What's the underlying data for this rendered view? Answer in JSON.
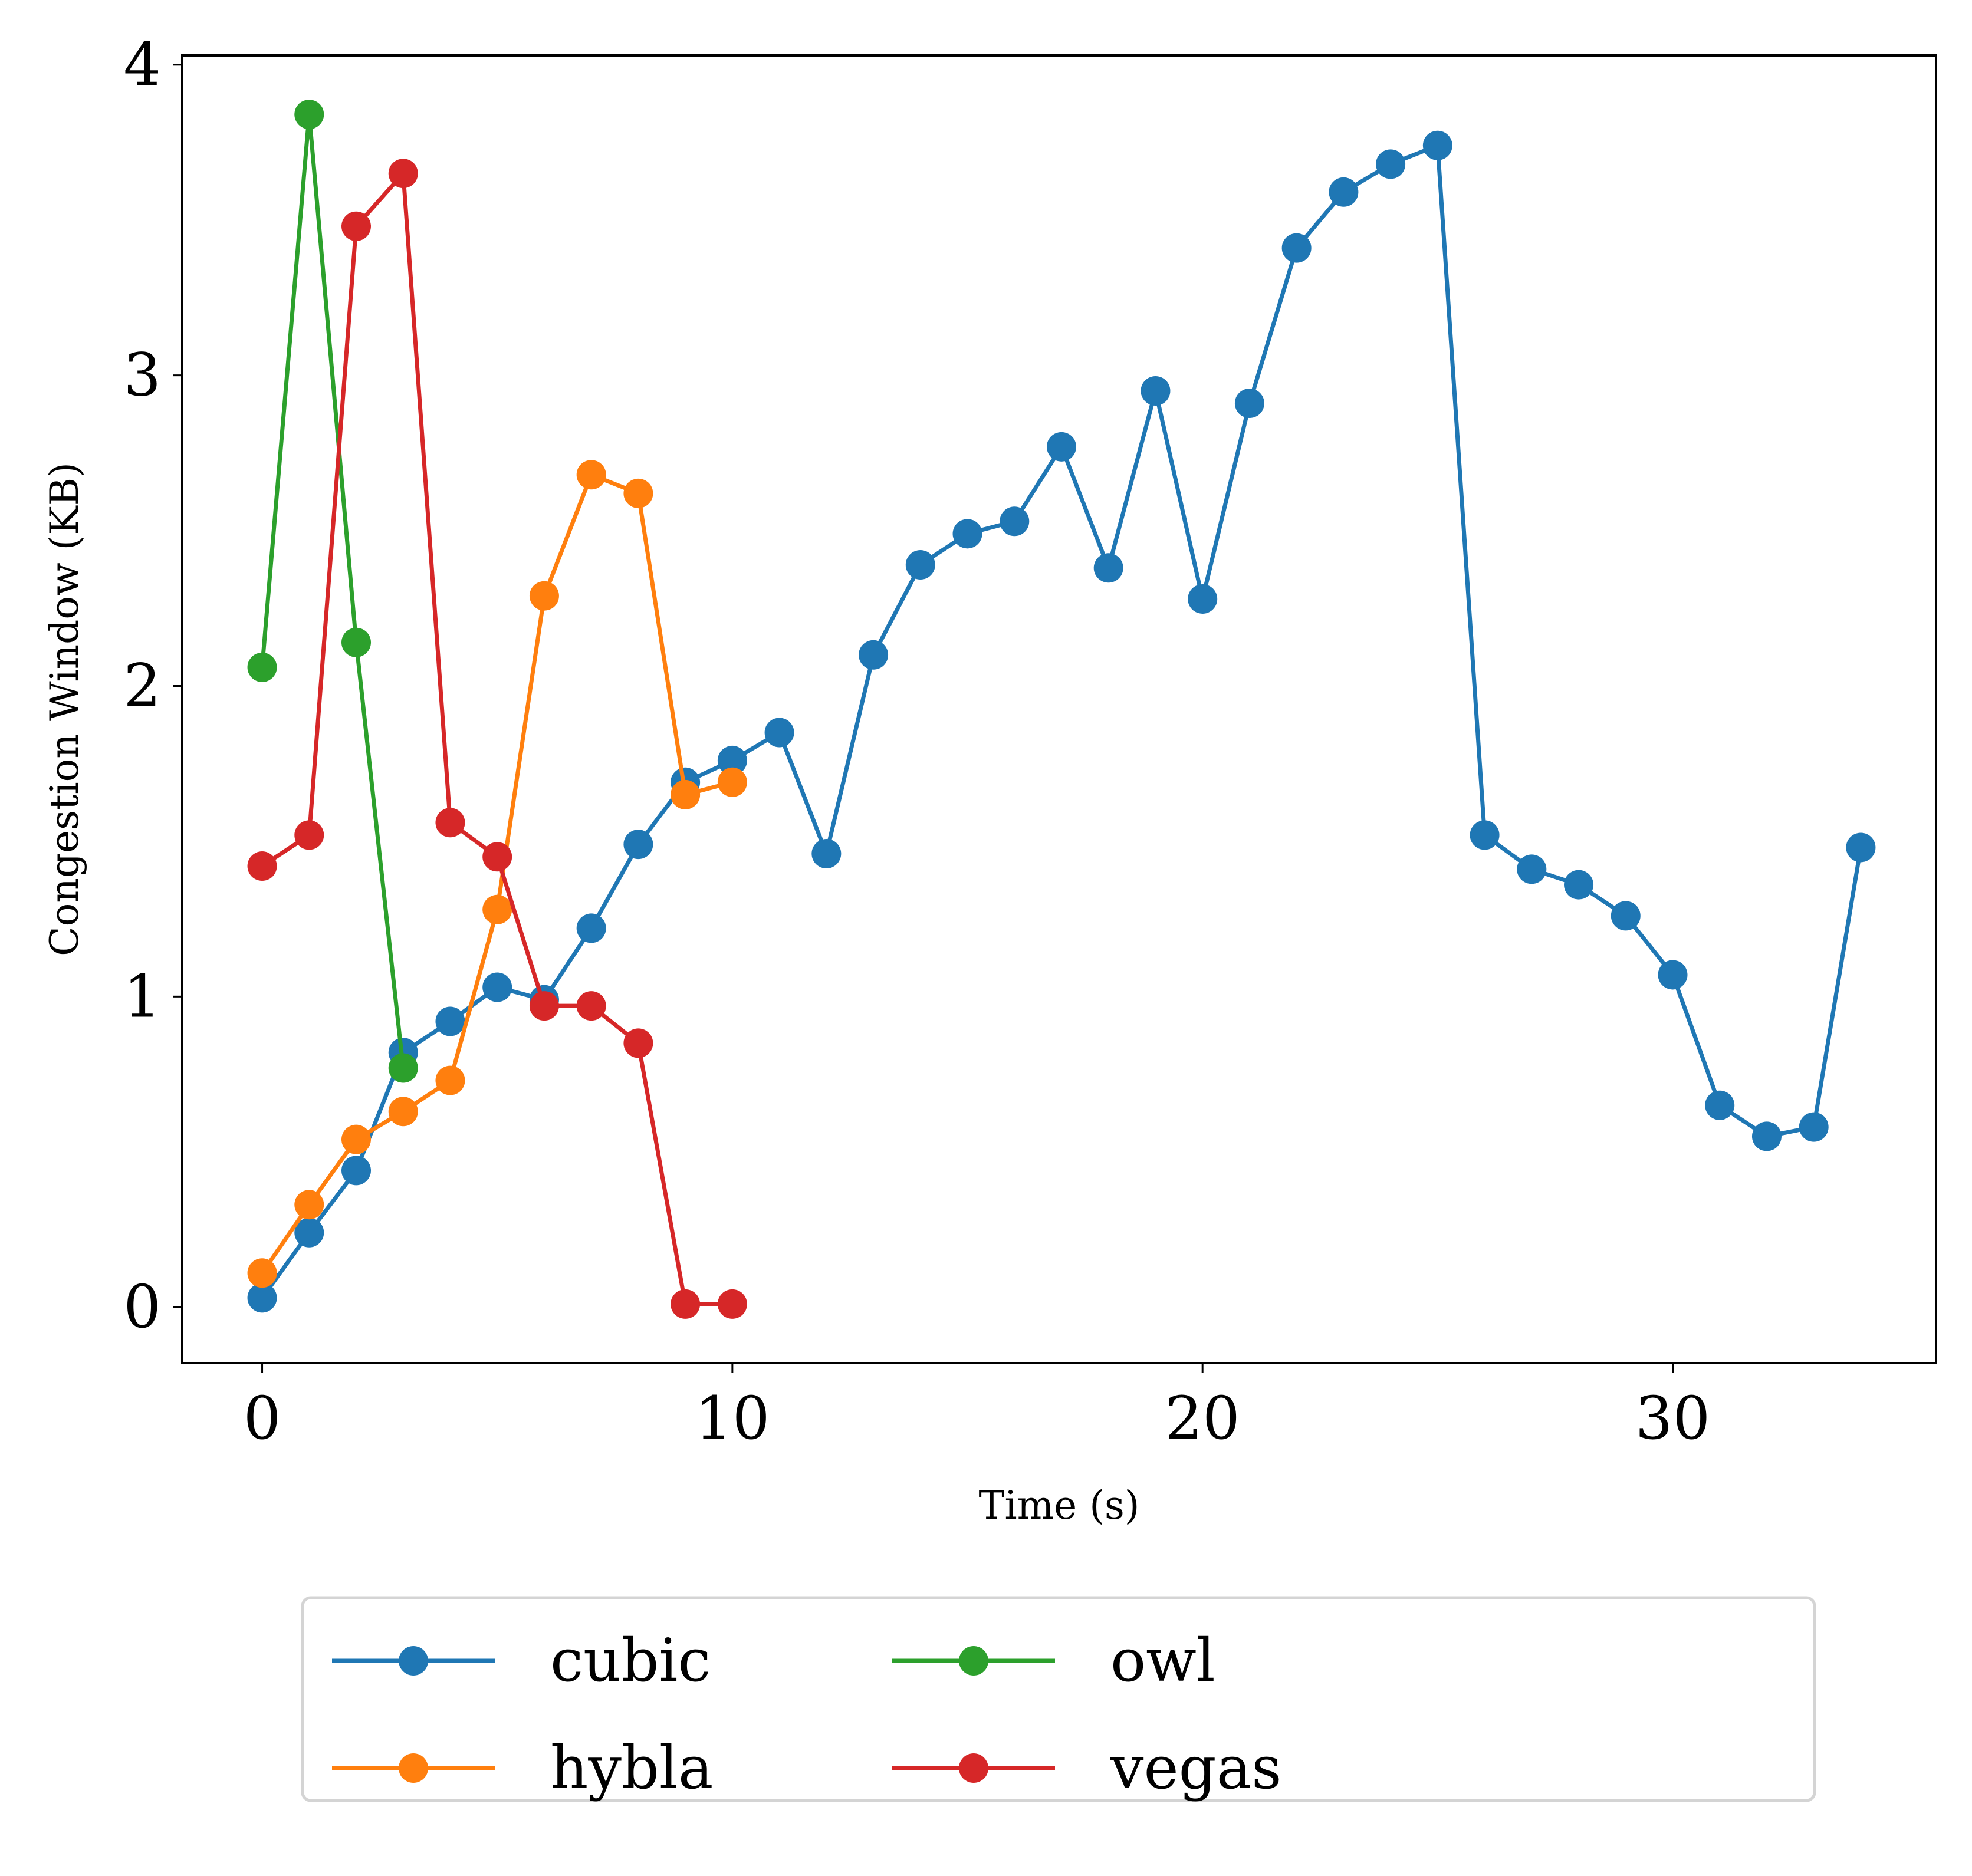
{
  "chart_data": {
    "type": "line",
    "xlabel": "Time (s)",
    "ylabel": "Congestion Window (KB)",
    "xlim": [
      -1.7,
      35.6
    ],
    "ylim": [
      -0.18,
      4.03
    ],
    "xticks": [
      0,
      10,
      20,
      30
    ],
    "yticks": [
      0,
      1,
      2,
      3,
      4
    ],
    "grid": false,
    "legend": {
      "position": "below-center",
      "columns": 3
    },
    "series": [
      {
        "name": "cubic",
        "color": "#1f77b4",
        "marker": "circle",
        "x": [
          0,
          1,
          2,
          3,
          4,
          5,
          6,
          7,
          8,
          9,
          10,
          11,
          12,
          13,
          14,
          15,
          16,
          17,
          18,
          19,
          20,
          21,
          22,
          23,
          24,
          25,
          26,
          27,
          28,
          29,
          30,
          31,
          32,
          33,
          34
        ],
        "y": [
          0.03,
          0.24,
          0.44,
          0.82,
          0.92,
          1.03,
          0.99,
          1.22,
          1.49,
          1.69,
          1.76,
          1.85,
          1.46,
          2.1,
          2.39,
          2.49,
          2.53,
          2.77,
          2.38,
          2.95,
          2.28,
          2.91,
          3.41,
          3.59,
          3.68,
          3.74,
          1.52,
          1.41,
          1.36,
          1.26,
          1.07,
          0.65,
          0.55,
          0.58,
          1.48
        ]
      },
      {
        "name": "hybla",
        "color": "#ff7f0e",
        "marker": "circle",
        "x": [
          0,
          1,
          2,
          3,
          4,
          5,
          6,
          7,
          8,
          9,
          10
        ],
        "y": [
          0.11,
          0.33,
          0.54,
          0.63,
          0.73,
          1.28,
          2.29,
          2.68,
          2.62,
          1.65,
          1.69
        ]
      },
      {
        "name": "owl",
        "color": "#2ca02c",
        "marker": "circle",
        "x": [
          0,
          1,
          2,
          3
        ],
        "y": [
          2.06,
          3.84,
          2.14,
          0.77
        ]
      },
      {
        "name": "vegas",
        "color": "#d62728",
        "marker": "circle",
        "x": [
          0,
          1,
          2,
          3,
          4,
          5,
          6,
          7,
          8,
          9,
          10
        ],
        "y": [
          1.42,
          1.52,
          3.48,
          3.65,
          1.56,
          1.45,
          0.97,
          0.97,
          0.85,
          0.01,
          0.01
        ]
      }
    ]
  }
}
